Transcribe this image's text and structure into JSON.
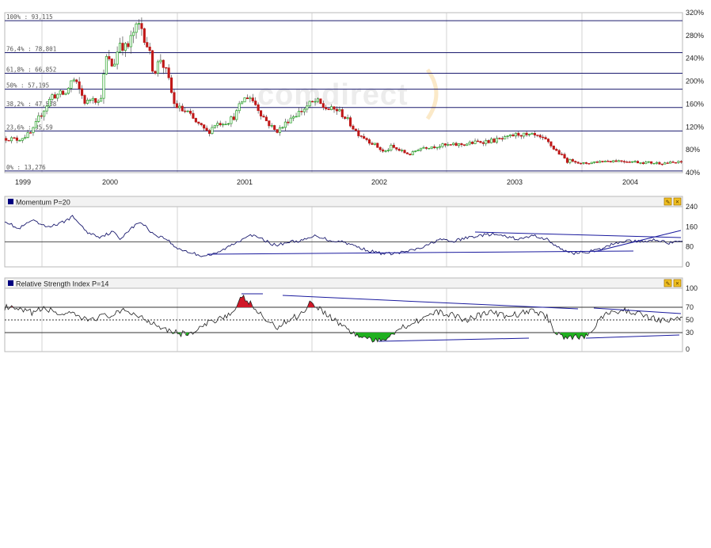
{
  "watermark": "comdirect",
  "years": [
    "1999",
    "2000",
    "2001",
    "2002",
    "2003",
    "2004"
  ],
  "colors": {
    "up": "#22a022",
    "down": "#c01818",
    "line": "#1a1a6e",
    "fib": "#1a1a6e",
    "grid": "#c8c8c8",
    "rsi_high": "#d01828",
    "rsi_low": "#20b020",
    "panel_square": "#000080",
    "icon_bg": "#f0c020"
  },
  "panel_icons": [
    "edit-icon",
    "close-icon"
  ],
  "chart_data": [
    {
      "type": "candlestick",
      "name": "price",
      "yaxis_ticks": [
        "320%",
        "280%",
        "240%",
        "200%",
        "160%",
        "120%",
        "80%",
        "40%"
      ],
      "ylim": [
        40,
        320
      ],
      "fibonacci_levels": [
        {
          "label": "100% : 93,115",
          "value": 306
        },
        {
          "label": "76,4% : 78,801",
          "value": 250
        },
        {
          "label": "61,8% : 66,852",
          "value": 214
        },
        {
          "label": "50% : 57,195",
          "value": 186
        },
        {
          "label": "38,2% : 47,538",
          "value": 154
        },
        {
          "label": "23,6% : 35,59",
          "value": 113
        },
        {
          "label": "0% : 13,276",
          "value": 43
        }
      ],
      "anchors": [
        [
          0,
          100
        ],
        [
          0.02,
          98
        ],
        [
          0.04,
          110
        ],
        [
          0.05,
          135
        ],
        [
          0.07,
          175
        ],
        [
          0.09,
          178
        ],
        [
          0.1,
          205
        ],
        [
          0.11,
          185
        ],
        [
          0.12,
          160
        ],
        [
          0.13,
          175
        ],
        [
          0.14,
          160
        ],
        [
          0.15,
          240
        ],
        [
          0.16,
          225
        ],
        [
          0.17,
          270
        ],
        [
          0.18,
          255
        ],
        [
          0.19,
          285
        ],
        [
          0.2,
          300
        ],
        [
          0.21,
          265
        ],
        [
          0.22,
          215
        ],
        [
          0.23,
          240
        ],
        [
          0.24,
          210
        ],
        [
          0.25,
          160
        ],
        [
          0.26,
          150
        ],
        [
          0.27,
          145
        ],
        [
          0.28,
          130
        ],
        [
          0.29,
          120
        ],
        [
          0.3,
          110
        ],
        [
          0.31,
          125
        ],
        [
          0.33,
          130
        ],
        [
          0.34,
          140
        ],
        [
          0.35,
          165
        ],
        [
          0.36,
          175
        ],
        [
          0.37,
          160
        ],
        [
          0.38,
          140
        ],
        [
          0.39,
          125
        ],
        [
          0.4,
          112
        ],
        [
          0.41,
          120
        ],
        [
          0.42,
          135
        ],
        [
          0.44,
          150
        ],
        [
          0.45,
          160
        ],
        [
          0.46,
          165
        ],
        [
          0.47,
          155
        ],
        [
          0.48,
          150
        ],
        [
          0.49,
          150
        ],
        [
          0.5,
          140
        ],
        [
          0.51,
          125
        ],
        [
          0.52,
          110
        ],
        [
          0.53,
          102
        ],
        [
          0.55,
          85
        ],
        [
          0.56,
          75
        ],
        [
          0.57,
          85
        ],
        [
          0.58,
          80
        ],
        [
          0.59,
          75
        ],
        [
          0.6,
          72
        ],
        [
          0.61,
          82
        ],
        [
          0.62,
          85
        ],
        [
          0.64,
          87
        ],
        [
          0.66,
          88
        ],
        [
          0.68,
          90
        ],
        [
          0.7,
          94
        ],
        [
          0.72,
          96
        ],
        [
          0.74,
          100
        ],
        [
          0.75,
          105
        ],
        [
          0.76,
          108
        ],
        [
          0.77,
          104
        ],
        [
          0.78,
          105
        ],
        [
          0.79,
          100
        ],
        [
          0.8,
          95
        ],
        [
          0.81,
          82
        ],
        [
          0.82,
          72
        ],
        [
          0.83,
          60
        ],
        [
          0.84,
          62
        ],
        [
          0.85,
          55
        ],
        [
          0.86,
          57
        ],
        [
          0.88,
          60
        ],
        [
          0.9,
          61
        ],
        [
          0.92,
          60
        ],
        [
          0.94,
          58
        ],
        [
          0.96,
          57
        ],
        [
          0.98,
          57
        ],
        [
          1,
          58
        ]
      ]
    },
    {
      "type": "line",
      "name": "Momentum P=20",
      "yaxis_ticks": [
        "240",
        "160",
        "80",
        "0"
      ],
      "ylim": [
        0,
        240
      ],
      "reference_line": 100,
      "anchors": [
        [
          0,
          185
        ],
        [
          0.02,
          150
        ],
        [
          0.04,
          185
        ],
        [
          0.06,
          160
        ],
        [
          0.08,
          170
        ],
        [
          0.1,
          200
        ],
        [
          0.11,
          175
        ],
        [
          0.12,
          140
        ],
        [
          0.14,
          120
        ],
        [
          0.16,
          140
        ],
        [
          0.17,
          110
        ],
        [
          0.18,
          140
        ],
        [
          0.2,
          180
        ],
        [
          0.22,
          130
        ],
        [
          0.24,
          110
        ],
        [
          0.25,
          80
        ],
        [
          0.27,
          60
        ],
        [
          0.29,
          45
        ],
        [
          0.31,
          50
        ],
        [
          0.33,
          80
        ],
        [
          0.35,
          110
        ],
        [
          0.36,
          130
        ],
        [
          0.38,
          110
        ],
        [
          0.4,
          85
        ],
        [
          0.42,
          100
        ],
        [
          0.44,
          105
        ],
        [
          0.46,
          125
        ],
        [
          0.48,
          105
        ],
        [
          0.5,
          100
        ],
        [
          0.52,
          80
        ],
        [
          0.54,
          62
        ],
        [
          0.56,
          52
        ],
        [
          0.58,
          55
        ],
        [
          0.6,
          65
        ],
        [
          0.62,
          80
        ],
        [
          0.64,
          110
        ],
        [
          0.66,
          100
        ],
        [
          0.68,
          115
        ],
        [
          0.7,
          125
        ],
        [
          0.72,
          130
        ],
        [
          0.74,
          120
        ],
        [
          0.76,
          110
        ],
        [
          0.78,
          125
        ],
        [
          0.8,
          110
        ],
        [
          0.82,
          70
        ],
        [
          0.84,
          55
        ],
        [
          0.86,
          60
        ],
        [
          0.88,
          70
        ],
        [
          0.9,
          95
        ],
        [
          0.92,
          105
        ],
        [
          0.94,
          100
        ],
        [
          0.96,
          110
        ],
        [
          0.98,
          95
        ],
        [
          1,
          100
        ]
      ]
    },
    {
      "type": "area",
      "name": "Relative Strength Index P=14",
      "yaxis_ticks": [
        "100",
        "70",
        "50",
        "30",
        "0"
      ],
      "ylim": [
        0,
        100
      ],
      "levels": [
        70,
        50,
        30
      ],
      "anchors": [
        [
          0,
          70
        ],
        [
          0.02,
          65
        ],
        [
          0.04,
          62
        ],
        [
          0.06,
          68
        ],
        [
          0.08,
          60
        ],
        [
          0.1,
          58
        ],
        [
          0.12,
          50
        ],
        [
          0.14,
          55
        ],
        [
          0.16,
          58
        ],
        [
          0.18,
          65
        ],
        [
          0.2,
          55
        ],
        [
          0.22,
          45
        ],
        [
          0.24,
          35
        ],
        [
          0.26,
          28
        ],
        [
          0.28,
          30
        ],
        [
          0.3,
          45
        ],
        [
          0.32,
          55
        ],
        [
          0.34,
          62
        ],
        [
          0.35,
          88
        ],
        [
          0.36,
          78
        ],
        [
          0.38,
          55
        ],
        [
          0.4,
          38
        ],
        [
          0.42,
          50
        ],
        [
          0.44,
          62
        ],
        [
          0.45,
          78
        ],
        [
          0.46,
          72
        ],
        [
          0.48,
          55
        ],
        [
          0.5,
          40
        ],
        [
          0.52,
          25
        ],
        [
          0.54,
          20
        ],
        [
          0.55,
          15
        ],
        [
          0.56,
          20
        ],
        [
          0.58,
          35
        ],
        [
          0.6,
          45
        ],
        [
          0.62,
          55
        ],
        [
          0.64,
          62
        ],
        [
          0.66,
          58
        ],
        [
          0.68,
          50
        ],
        [
          0.7,
          58
        ],
        [
          0.72,
          62
        ],
        [
          0.74,
          55
        ],
        [
          0.76,
          60
        ],
        [
          0.78,
          65
        ],
        [
          0.8,
          55
        ],
        [
          0.81,
          35
        ],
        [
          0.82,
          25
        ],
        [
          0.84,
          22
        ],
        [
          0.86,
          25
        ],
        [
          0.87,
          40
        ],
        [
          0.88,
          55
        ],
        [
          0.9,
          62
        ],
        [
          0.92,
          65
        ],
        [
          0.94,
          58
        ],
        [
          0.96,
          52
        ],
        [
          0.98,
          48
        ],
        [
          1,
          55
        ]
      ]
    }
  ],
  "momentum_label": "Momentum P=20",
  "rsi_label": "Relative Strength Index P=14"
}
